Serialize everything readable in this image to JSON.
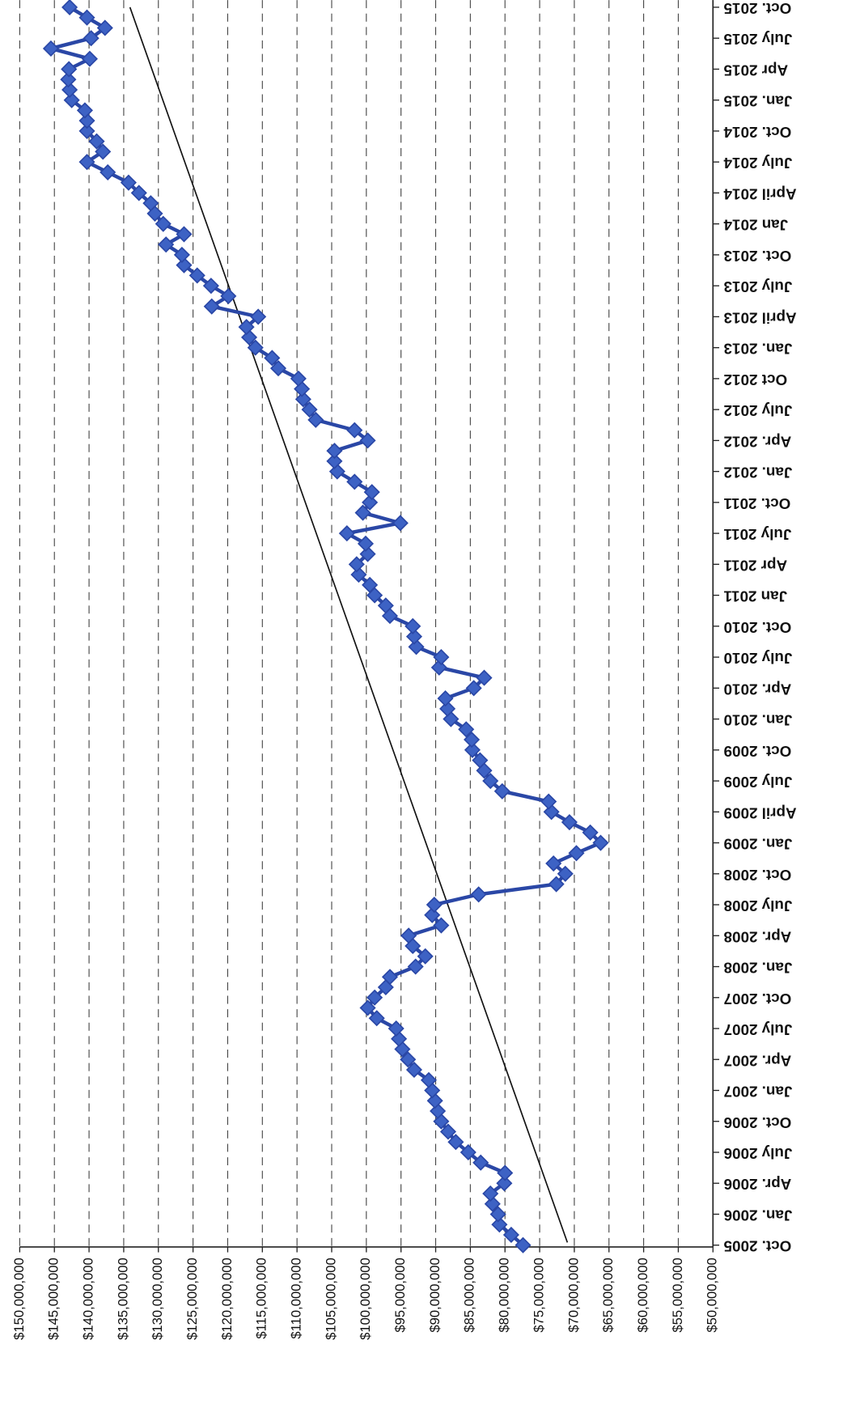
{
  "chart_data": {
    "type": "line",
    "categories": [
      "Oct. 2005",
      null,
      null,
      "Jan. 2006",
      null,
      null,
      "Apr. 2006",
      null,
      null,
      "July 2006",
      null,
      null,
      "Oct. 2006",
      null,
      null,
      "Jan. 2007",
      null,
      null,
      "Apr. 2007",
      null,
      null,
      "July 2007",
      null,
      null,
      "Oct. 2007",
      null,
      null,
      "Jan. 2008",
      null,
      null,
      "Apr. 2008",
      null,
      null,
      "July 2008",
      null,
      null,
      "Oct. 2008",
      null,
      null,
      "Jan. 2009",
      null,
      null,
      "April 2009",
      null,
      null,
      "July 2009",
      null,
      null,
      "Oct. 2009",
      null,
      null,
      "Jan. 2010",
      null,
      null,
      "Apr. 2010",
      null,
      null,
      "July 2010",
      null,
      null,
      "Oct. 2010",
      null,
      null,
      "Jan 2011",
      null,
      null,
      "Apr 2011",
      null,
      null,
      "July 2011",
      null,
      null,
      "Oct. 2011",
      null,
      null,
      "Jan. 2012",
      null,
      null,
      "Apr. 2012",
      null,
      null,
      "July 2012",
      null,
      null,
      "Oct 2012",
      null,
      null,
      "Jan. 2013",
      null,
      null,
      "April 2013",
      null,
      null,
      "July 2013",
      null,
      null,
      "Oct. 2013",
      null,
      null,
      "Jan 2014",
      null,
      null,
      "April 2014",
      null,
      null,
      "July 2014",
      null,
      null,
      "Oct. 2014",
      null,
      null,
      "Jan. 2015",
      null,
      null,
      "Apr 2015",
      null,
      null,
      "July 2015",
      null,
      null,
      "Oct. 2015"
    ],
    "values": [
      77400000,
      79100000,
      80800000,
      81000000,
      81800000,
      82100000,
      80100000,
      80000000,
      83500000,
      85300000,
      87100000,
      88200000,
      89200000,
      89700000,
      90100000,
      90500000,
      91000000,
      93100000,
      94000000,
      94800000,
      95300000,
      95700000,
      98500000,
      99800000,
      98800000,
      97200000,
      96600000,
      92900000,
      91500000,
      93300000,
      93900000,
      89200000,
      90500000,
      90200000,
      83800000,
      72600000,
      71300000,
      73000000,
      69700000,
      66200000,
      67700000,
      70700000,
      73300000,
      73700000,
      80400000,
      82100000,
      83000000,
      83600000,
      84700000,
      84800000,
      85600000,
      87800000,
      88300000,
      88600000,
      84500000,
      83000000,
      89500000,
      89200000,
      92800000,
      93100000,
      93300000,
      96600000,
      97200000,
      98800000,
      99500000,
      101100000,
      101400000,
      99800000,
      100100000,
      102800000,
      95100000,
      100500000,
      99500000,
      99200000,
      101700000,
      104200000,
      104600000,
      104600000,
      99800000,
      101700000,
      107300000,
      108200000,
      109100000,
      109300000,
      109800000,
      112700000,
      113600000,
      116000000,
      116900000,
      117300000,
      115600000,
      122300000,
      119900000,
      122400000,
      124400000,
      126300000,
      126600000,
      128900000,
      126300000,
      129300000,
      130500000,
      131100000,
      132800000,
      134300000,
      137300000,
      140300000,
      138000000,
      138900000,
      140300000,
      140300000,
      140600000,
      142500000,
      142800000,
      143000000,
      142900000,
      139900000,
      145500000,
      139700000,
      137700000,
      140300000,
      142800000
    ],
    "color": "#2a47a6",
    "trendline": [
      71000000,
      134100000
    ],
    "ylim": [
      50000000,
      150000000
    ],
    "yticks": [
      {
        "value": 50000000,
        "label": "$50,000,000"
      },
      {
        "value": 55000000,
        "label": "$55,000,000"
      },
      {
        "value": 60000000,
        "label": "$60,000,000"
      },
      {
        "value": 65000000,
        "label": "$65,000,000"
      },
      {
        "value": 70000000,
        "label": "$70,000,000"
      },
      {
        "value": 75000000,
        "label": "$75,000,000"
      },
      {
        "value": 80000000,
        "label": "$80,000,000"
      },
      {
        "value": 85000000,
        "label": "$85,000,000"
      },
      {
        "value": 90000000,
        "label": "$90,000,000"
      },
      {
        "value": 95000000,
        "label": "$95,000,000"
      },
      {
        "value": 100000000,
        "label": "$100,000,000"
      },
      {
        "value": 105000000,
        "label": "$105,000,000"
      },
      {
        "value": 110000000,
        "label": "$110,000,000"
      },
      {
        "value": 115000000,
        "label": "$115,000,000"
      },
      {
        "value": 120000000,
        "label": "$120,000,000"
      },
      {
        "value": 125000000,
        "label": "$125,000,000"
      },
      {
        "value": 130000000,
        "label": "$130,000,000"
      },
      {
        "value": 135000000,
        "label": "$135,000,000"
      },
      {
        "value": 140000000,
        "label": "$140,000,000"
      },
      {
        "value": 145000000,
        "label": "$145,000,000"
      },
      {
        "value": 150000000,
        "label": "$150,000,000"
      }
    ],
    "grid": true
  }
}
